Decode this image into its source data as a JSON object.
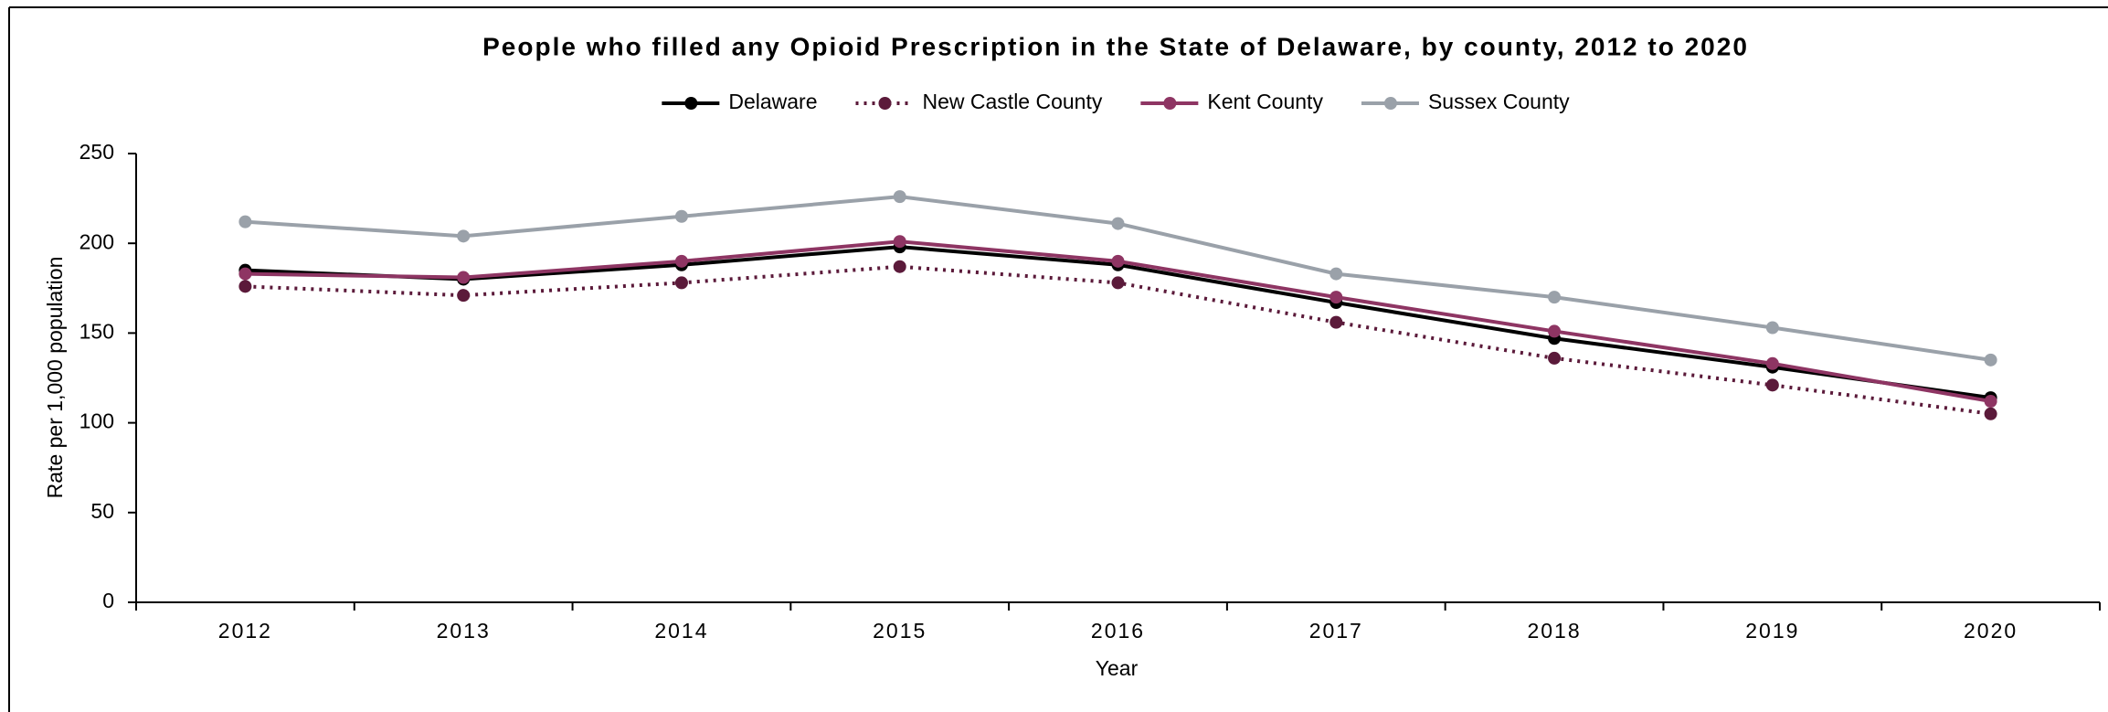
{
  "chart_data": {
    "type": "line",
    "title": "People who filled any Opioid Prescription in the State of Delaware, by county, 2012 to 2020",
    "x_label": "Year",
    "y_label": "Rate per 1,000  population",
    "categories": [
      "2012",
      "2013",
      "2014",
      "2015",
      "2016",
      "2017",
      "2018",
      "2019",
      "2020"
    ],
    "series": [
      {
        "name": "Delaware",
        "color": "#000000",
        "line_style": "solid",
        "values": [
          185,
          180,
          188,
          198,
          188,
          167,
          147,
          131,
          114
        ]
      },
      {
        "name": "New Castle County",
        "color": "#5b1a3a",
        "line_style": "dotted",
        "values": [
          176,
          171,
          178,
          187,
          178,
          156,
          136,
          121,
          105
        ]
      },
      {
        "name": "Kent County",
        "color": "#8e3563",
        "line_style": "solid",
        "values": [
          183,
          181,
          190,
          201,
          190,
          170,
          151,
          133,
          112
        ]
      },
      {
        "name": "Sussex County",
        "color": "#9aa1a9",
        "line_style": "solid",
        "values": [
          212,
          204,
          215,
          226,
          211,
          183,
          170,
          153,
          135
        ]
      }
    ],
    "ylim": [
      0,
      250
    ],
    "yticks": [
      0,
      50,
      100,
      150,
      200,
      250
    ],
    "legend": "top",
    "grid": false
  }
}
